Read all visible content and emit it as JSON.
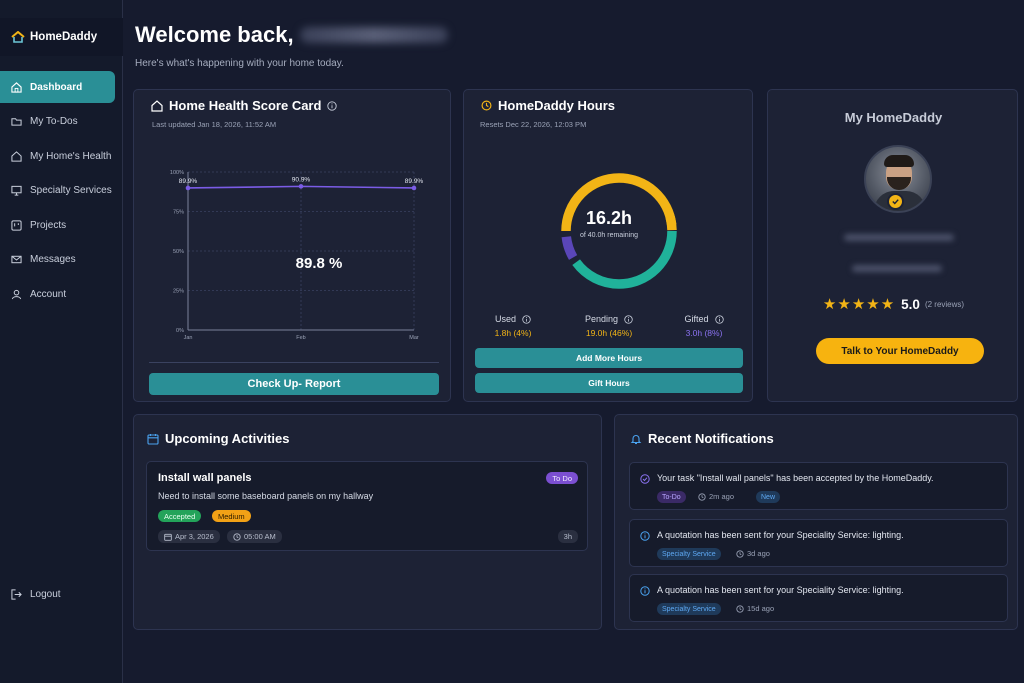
{
  "app": {
    "name": "HomeDaddy"
  },
  "sidebar": {
    "items": [
      {
        "label": "Dashboard",
        "icon": "home-icon",
        "active": true
      },
      {
        "label": "My To-Dos",
        "icon": "folder-icon"
      },
      {
        "label": "My Home's Health",
        "icon": "house-icon"
      },
      {
        "label": "Specialty Services",
        "icon": "monitor-icon"
      },
      {
        "label": "Projects",
        "icon": "kanban-icon"
      },
      {
        "label": "Messages",
        "icon": "mail-icon"
      },
      {
        "label": "Account",
        "icon": "user-icon"
      }
    ],
    "logout": "Logout"
  },
  "header": {
    "welcome": "Welcome back,",
    "subtitle": "Here's what's happening with your home today."
  },
  "health": {
    "title": "Home Health Score Card",
    "updated": "Last updated Jan 18, 2026, 11:52 AM",
    "score": "89.8 %",
    "button": "Check Up- Report",
    "chart_data": {
      "type": "line",
      "categories": [
        "Jan",
        "Feb",
        "Mar"
      ],
      "values": [
        89.9,
        90.9,
        89.9
      ],
      "data_labels": [
        "89.9%",
        "90.9%",
        "89.9%"
      ],
      "y_ticks": [
        "0%",
        "25%",
        "50%",
        "75%",
        "100%"
      ],
      "ylim": [
        0,
        100
      ],
      "color": "#7b5ce6"
    }
  },
  "hours": {
    "title": "HomeDaddy Hours",
    "resets": "Resets Dec 22, 2026, 12:03 PM",
    "value": "16.2h",
    "sub": "of 40.0h remaining",
    "stats": [
      {
        "label": "Used",
        "value": "1.8h (4%)",
        "color": "#f2b416"
      },
      {
        "label": "Pending",
        "value": "19.0h (46%)",
        "color": "#f2b416"
      },
      {
        "label": "Gifted",
        "value": "3.0h (8%)",
        "color": "#8a72f0"
      }
    ],
    "add_button": "Add More Hours",
    "gift_button": "Gift Hours"
  },
  "my_homedaddy": {
    "title": "My HomeDaddy",
    "rating": "5.0",
    "reviews": "(2 reviews)",
    "button": "Talk to Your HomeDaddy"
  },
  "activities": {
    "title": "Upcoming Activities",
    "items": [
      {
        "title": "Install wall panels",
        "status": "To Do",
        "description": "Need to install some baseboard panels on my hallway",
        "tags": [
          "Accepted",
          "Medium"
        ],
        "date": "Apr 3, 2026",
        "time": "05:00 AM",
        "duration": "3h"
      }
    ]
  },
  "notifications": {
    "title": "Recent Notifications",
    "items": [
      {
        "text": "Your task \"Install wall panels\" has been accepted by the HomeDaddy.",
        "tag": "To-Do",
        "time": "2m ago",
        "extra": "New"
      },
      {
        "text": "A quotation has been sent for your Speciality Service: lighting.",
        "tag": "Specialty Service",
        "time": "3d ago"
      },
      {
        "text": "A quotation has been sent for your Speciality Service: lighting.",
        "tag": "Specialty Service",
        "time": "15d ago"
      }
    ]
  }
}
